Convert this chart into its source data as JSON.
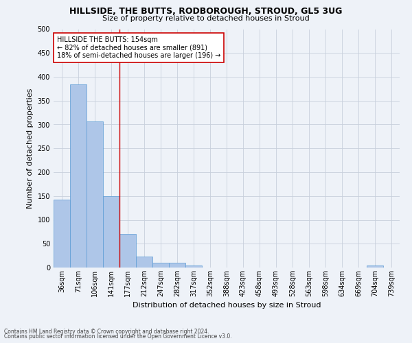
{
  "title": "HILLSIDE, THE BUTTS, RODBOROUGH, STROUD, GL5 3UG",
  "subtitle": "Size of property relative to detached houses in Stroud",
  "xlabel": "Distribution of detached houses by size in Stroud",
  "ylabel": "Number of detached properties",
  "footnote1": "Contains HM Land Registry data © Crown copyright and database right 2024.",
  "footnote2": "Contains public sector information licensed under the Open Government Licence v3.0.",
  "bar_values": [
    143,
    384,
    307,
    149,
    70,
    23,
    10,
    10,
    5,
    0,
    0,
    0,
    0,
    0,
    0,
    0,
    0,
    0,
    0,
    5,
    0
  ],
  "categories": [
    "36sqm",
    "71sqm",
    "106sqm",
    "141sqm",
    "177sqm",
    "212sqm",
    "247sqm",
    "282sqm",
    "317sqm",
    "352sqm",
    "388sqm",
    "423sqm",
    "458sqm",
    "493sqm",
    "528sqm",
    "563sqm",
    "598sqm",
    "634sqm",
    "669sqm",
    "704sqm",
    "739sqm"
  ],
  "bar_color": "#aec6e8",
  "bar_edge_color": "#5b9bd5",
  "vline_x": 3.5,
  "vline_color": "#cc0000",
  "annotation_text": "HILLSIDE THE BUTTS: 154sqm\n← 82% of detached houses are smaller (891)\n18% of semi-detached houses are larger (196) →",
  "annotation_box_color": "#ffffff",
  "annotation_box_edge": "#cc0000",
  "ylim": [
    0,
    500
  ],
  "yticks": [
    0,
    50,
    100,
    150,
    200,
    250,
    300,
    350,
    400,
    450,
    500
  ],
  "grid_color": "#c8d0dc",
  "bg_color": "#eef2f8",
  "title_fontsize": 9,
  "subtitle_fontsize": 8,
  "ylabel_fontsize": 8,
  "xlabel_fontsize": 8,
  "tick_fontsize": 7,
  "annot_fontsize": 7,
  "footnote_fontsize": 5.5
}
